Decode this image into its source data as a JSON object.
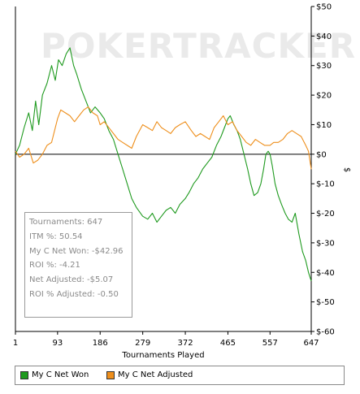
{
  "watermark": "POKERTRACKER",
  "chart_data": {
    "type": "line",
    "xlabel": "Tournaments Played",
    "ylabel": "$",
    "xlim": [
      1,
      647
    ],
    "ylim": [
      -60,
      50
    ],
    "x_ticks": [
      1,
      93,
      186,
      279,
      372,
      465,
      557,
      647
    ],
    "y_ticks": [
      {
        "value": 50,
        "label": "$50"
      },
      {
        "value": 40,
        "label": "$40"
      },
      {
        "value": 30,
        "label": "$30"
      },
      {
        "value": 20,
        "label": "$20"
      },
      {
        "value": 10,
        "label": "$10"
      },
      {
        "value": 0,
        "label": "$0"
      },
      {
        "value": -10,
        "label": "$-10"
      },
      {
        "value": -20,
        "label": "$-20"
      },
      {
        "value": -30,
        "label": "$-30"
      },
      {
        "value": -40,
        "label": "$-40"
      },
      {
        "value": -50,
        "label": "$-50"
      },
      {
        "value": -60,
        "label": "$-60"
      }
    ],
    "series": [
      {
        "name": "My C Net Won",
        "color": "#1f9a1f",
        "points": [
          [
            1,
            0
          ],
          [
            10,
            3
          ],
          [
            20,
            9
          ],
          [
            30,
            14
          ],
          [
            38,
            8
          ],
          [
            45,
            18
          ],
          [
            52,
            10
          ],
          [
            60,
            20
          ],
          [
            70,
            24
          ],
          [
            80,
            30
          ],
          [
            88,
            25
          ],
          [
            95,
            32
          ],
          [
            103,
            30
          ],
          [
            112,
            34
          ],
          [
            120,
            36
          ],
          [
            128,
            30
          ],
          [
            135,
            27
          ],
          [
            145,
            22
          ],
          [
            155,
            18
          ],
          [
            165,
            14
          ],
          [
            175,
            16
          ],
          [
            186,
            14
          ],
          [
            195,
            12
          ],
          [
            205,
            8
          ],
          [
            215,
            5
          ],
          [
            225,
            0
          ],
          [
            235,
            -5
          ],
          [
            245,
            -10
          ],
          [
            255,
            -15
          ],
          [
            265,
            -18
          ],
          [
            279,
            -21
          ],
          [
            290,
            -22
          ],
          [
            300,
            -20
          ],
          [
            310,
            -23
          ],
          [
            320,
            -21
          ],
          [
            330,
            -19
          ],
          [
            340,
            -18
          ],
          [
            350,
            -20
          ],
          [
            360,
            -17
          ],
          [
            372,
            -15
          ],
          [
            380,
            -13
          ],
          [
            390,
            -10
          ],
          [
            400,
            -8
          ],
          [
            410,
            -5
          ],
          [
            420,
            -3
          ],
          [
            430,
            -1
          ],
          [
            440,
            3
          ],
          [
            450,
            6
          ],
          [
            460,
            10
          ],
          [
            465,
            12
          ],
          [
            470,
            13
          ],
          [
            478,
            10
          ],
          [
            485,
            8
          ],
          [
            492,
            5
          ],
          [
            500,
            0
          ],
          [
            508,
            -5
          ],
          [
            515,
            -10
          ],
          [
            522,
            -14
          ],
          [
            530,
            -13
          ],
          [
            537,
            -10
          ],
          [
            543,
            -5
          ],
          [
            548,
            0
          ],
          [
            553,
            1
          ],
          [
            557,
            0
          ],
          [
            562,
            -4
          ],
          [
            568,
            -10
          ],
          [
            575,
            -14
          ],
          [
            582,
            -17
          ],
          [
            590,
            -20
          ],
          [
            597,
            -22
          ],
          [
            605,
            -23
          ],
          [
            612,
            -20
          ],
          [
            620,
            -27
          ],
          [
            628,
            -33
          ],
          [
            635,
            -36
          ],
          [
            641,
            -40
          ],
          [
            647,
            -42.96
          ]
        ]
      },
      {
        "name": "My C Net Adjusted",
        "color": "#ee8f1c",
        "points": [
          [
            1,
            1
          ],
          [
            10,
            -1
          ],
          [
            20,
            0
          ],
          [
            30,
            2
          ],
          [
            40,
            -3
          ],
          [
            50,
            -2
          ],
          [
            60,
            0
          ],
          [
            70,
            3
          ],
          [
            80,
            4
          ],
          [
            93,
            12
          ],
          [
            100,
            15
          ],
          [
            110,
            14
          ],
          [
            120,
            13
          ],
          [
            130,
            11
          ],
          [
            140,
            13
          ],
          [
            150,
            15
          ],
          [
            160,
            16
          ],
          [
            170,
            14
          ],
          [
            180,
            13
          ],
          [
            186,
            10
          ],
          [
            195,
            11
          ],
          [
            205,
            9
          ],
          [
            215,
            7
          ],
          [
            225,
            5
          ],
          [
            235,
            4
          ],
          [
            245,
            3
          ],
          [
            255,
            2
          ],
          [
            265,
            6
          ],
          [
            279,
            10
          ],
          [
            290,
            9
          ],
          [
            300,
            8
          ],
          [
            310,
            11
          ],
          [
            320,
            9
          ],
          [
            330,
            8
          ],
          [
            340,
            7
          ],
          [
            350,
            9
          ],
          [
            360,
            10
          ],
          [
            372,
            11
          ],
          [
            385,
            8
          ],
          [
            395,
            6
          ],
          [
            405,
            7
          ],
          [
            415,
            6
          ],
          [
            425,
            5
          ],
          [
            435,
            9
          ],
          [
            445,
            11
          ],
          [
            455,
            13
          ],
          [
            465,
            10
          ],
          [
            475,
            11
          ],
          [
            485,
            8
          ],
          [
            495,
            6
          ],
          [
            505,
            4
          ],
          [
            515,
            3
          ],
          [
            525,
            5
          ],
          [
            535,
            4
          ],
          [
            545,
            3
          ],
          [
            557,
            3
          ],
          [
            565,
            4
          ],
          [
            575,
            4
          ],
          [
            585,
            5
          ],
          [
            595,
            7
          ],
          [
            605,
            8
          ],
          [
            615,
            7
          ],
          [
            625,
            6
          ],
          [
            635,
            3
          ],
          [
            641,
            1
          ],
          [
            647,
            -5.07
          ]
        ]
      }
    ]
  },
  "stats": {
    "tournaments": "Tournaments: 647",
    "itm": "ITM %: 50.54",
    "net_won": "My C Net Won: -$42.96",
    "roi": "ROI %: -4.21",
    "net_adjusted": "Net Adjusted: -$5.07",
    "roi_adjusted": "ROI % Adjusted: -0.50"
  },
  "legend": {
    "net_won_label": "My C Net Won",
    "net_adjusted_label": "My C Net Adjusted"
  }
}
